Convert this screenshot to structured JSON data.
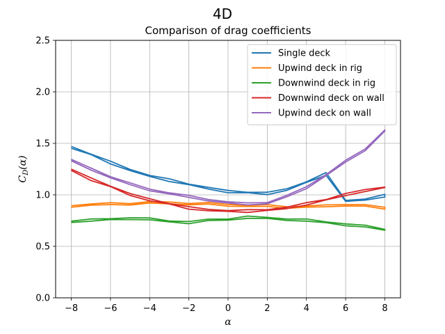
{
  "figure": {
    "suptitle": "4D"
  },
  "chart_data": {
    "type": "line",
    "title": "Comparison of drag coefficients",
    "xlabel": "α",
    "ylabel": "C_D(α)",
    "ylabel_main": "C",
    "ylabel_sub": "D",
    "ylabel_tail": "(α)",
    "xlim": [
      -8.8,
      8.8
    ],
    "ylim": [
      0.0,
      2.5
    ],
    "xticks": [
      -8,
      -6,
      -4,
      -2,
      0,
      2,
      4,
      6,
      8
    ],
    "xtick_labels": [
      "−8",
      "−6",
      "−4",
      "−2",
      "0",
      "2",
      "4",
      "6",
      "8"
    ],
    "yticks": [
      0.0,
      0.5,
      1.0,
      1.5,
      2.0,
      2.5
    ],
    "ytick_labels": [
      "0.0",
      "0.5",
      "1.0",
      "1.5",
      "2.0",
      "2.5"
    ],
    "grid": true,
    "legend_position": "top-right",
    "x": [
      -8,
      -7,
      -6,
      -5,
      -4,
      -3,
      -2,
      -1,
      0,
      1,
      2,
      3,
      4,
      5,
      6,
      7,
      8
    ],
    "series": [
      {
        "name": "Single deck",
        "color": "#1f77b4",
        "values": [
          1.47,
          1.4,
          1.32,
          1.25,
          1.19,
          1.15,
          1.11,
          1.07,
          1.04,
          1.03,
          1.02,
          1.06,
          1.13,
          1.21,
          0.95,
          0.96,
          1.0
        ]
      },
      {
        "name": "Upwind deck in rig",
        "color": "#ff7f0e",
        "values": [
          0.9,
          0.91,
          0.92,
          0.92,
          0.93,
          0.93,
          0.92,
          0.92,
          0.91,
          0.9,
          0.9,
          0.89,
          0.89,
          0.9,
          0.91,
          0.9,
          0.88
        ]
      },
      {
        "name": "Downwind deck in rig",
        "color": "#2ca02c",
        "values": [
          0.75,
          0.76,
          0.77,
          0.78,
          0.77,
          0.75,
          0.74,
          0.76,
          0.77,
          0.79,
          0.78,
          0.77,
          0.76,
          0.74,
          0.72,
          0.7,
          0.67
        ]
      },
      {
        "name": "Downwind deck on wall",
        "color": "#d62728",
        "values": [
          1.25,
          1.16,
          1.09,
          1.01,
          0.96,
          0.92,
          0.88,
          0.86,
          0.85,
          0.85,
          0.86,
          0.88,
          0.92,
          0.96,
          1.01,
          1.05,
          1.08
        ]
      },
      {
        "name": "Upwind deck on wall",
        "color": "#9467bd",
        "values": [
          1.34,
          1.26,
          1.18,
          1.11,
          1.06,
          1.02,
          0.99,
          0.96,
          0.93,
          0.92,
          0.93,
          0.99,
          1.08,
          1.2,
          1.33,
          1.45,
          1.63
        ]
      }
    ]
  }
}
